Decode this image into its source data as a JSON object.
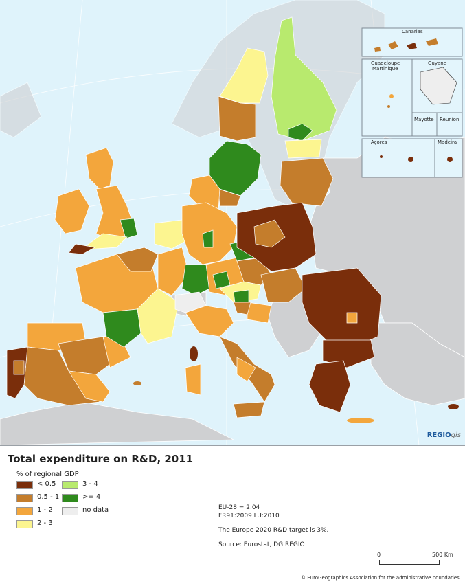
{
  "map": {
    "title": "Total expenditure on R&D, 2011",
    "legend_heading": "% of regional GDP",
    "classes": [
      {
        "label": "< 0.5",
        "color": "#7a2e0b"
      },
      {
        "label": "0.5 - 1",
        "color": "#c47d2c"
      },
      {
        "label": "1 - 2",
        "color": "#f3a63c"
      },
      {
        "label": "2 - 3",
        "color": "#fcf590"
      },
      {
        "label": "3 - 4",
        "color": "#b8ea6e"
      },
      {
        "label": ">= 4",
        "color": "#2f8a1d"
      },
      {
        "label": "no data",
        "color": "#eeeeee"
      }
    ],
    "notes": {
      "eu_average": "EU-28 = 2.04",
      "boundaries": "FR91:2009  LU:2010",
      "target": "The Europe 2020 R&D target is 3%.",
      "source": "Source: Eurostat, DG REGIO"
    },
    "scale": {
      "zero": "0",
      "max": "500 Km"
    },
    "copyright": "© EuroGeographics Association for the administrative boundaries",
    "brand": {
      "bold": "REGIO",
      "italic": "gis"
    },
    "insets": {
      "canarias": "Canarias",
      "guadeloupe": "Guadeloupe",
      "martinique": "Martinique",
      "guyane": "Guyane",
      "mayotte": "Mayotte",
      "reunion": "Réunion",
      "acores": "Açores",
      "madeira": "Madeira"
    },
    "colors": {
      "sea": "#dff3fb",
      "non_eu": "#cfd0d2",
      "border": "#ffffff"
    }
  }
}
